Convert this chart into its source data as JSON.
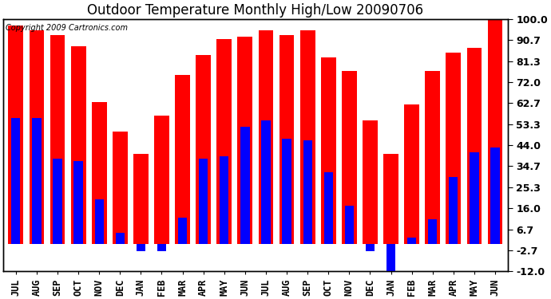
{
  "title": "Outdoor Temperature Monthly High/Low 20090706",
  "copyright": "Copyright 2009 Cartronics.com",
  "months": [
    "JUL",
    "AUG",
    "SEP",
    "OCT",
    "NOV",
    "DEC",
    "JAN",
    "FEB",
    "MAR",
    "APR",
    "MAY",
    "JUN",
    "JUL",
    "AUG",
    "SEP",
    "OCT",
    "NOV",
    "DEC",
    "JAN",
    "FEB",
    "MAR",
    "APR",
    "MAY",
    "JUN"
  ],
  "highs": [
    97,
    95,
    93,
    88,
    63,
    50,
    40,
    57,
    75,
    84,
    91,
    92,
    95,
    93,
    95,
    83,
    77,
    55,
    40,
    62,
    77,
    85,
    87,
    100
  ],
  "lows": [
    56,
    56,
    38,
    37,
    20,
    5,
    -3,
    -3,
    12,
    38,
    39,
    52,
    55,
    47,
    46,
    32,
    17,
    -3,
    -12,
    3,
    11,
    30,
    41,
    43
  ],
  "yticks": [
    -12.0,
    -2.7,
    6.7,
    16.0,
    25.3,
    34.7,
    44.0,
    53.3,
    62.7,
    72.0,
    81.3,
    90.7,
    100.0
  ],
  "ymin": -12.0,
  "ymax": 100.0,
  "high_color": "#FF0000",
  "low_color": "#0000FF",
  "background_color": "#FFFFFF",
  "grid_color": "#AAAAAA",
  "title_fontsize": 12,
  "tick_fontsize": 9,
  "label_fontsize": 8.5
}
